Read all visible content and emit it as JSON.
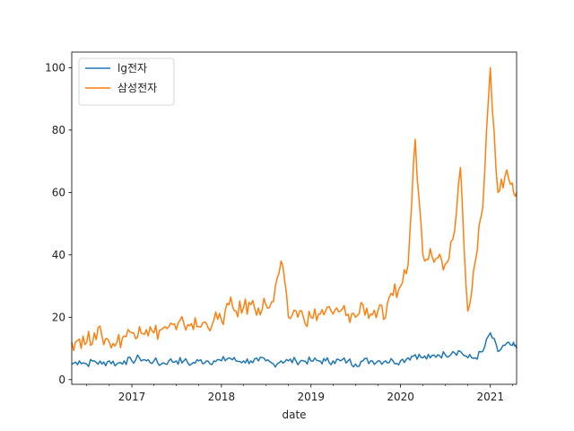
{
  "chart_data": {
    "type": "line",
    "title": "",
    "xlabel": "date",
    "ylabel": "",
    "ylim": [
      -1.5,
      105
    ],
    "xlim": [
      "2016-05-01",
      "2021-04-18"
    ],
    "grid": false,
    "legend": "top-left",
    "x_ticks": [
      "2017",
      "2018",
      "2019",
      "2020",
      "2021"
    ],
    "y_ticks": [
      "0",
      "20",
      "40",
      "60",
      "80",
      "100"
    ],
    "series": [
      {
        "name": "lg전자",
        "color": "#1f77b4",
        "points": [
          [
            "2016-05-01",
            5
          ],
          [
            "2016-06-01",
            6
          ],
          [
            "2016-07-01",
            5
          ],
          [
            "2016-08-01",
            6
          ],
          [
            "2016-09-01",
            5
          ],
          [
            "2016-10-01",
            6
          ],
          [
            "2016-11-01",
            5
          ],
          [
            "2016-12-01",
            6
          ],
          [
            "2017-01-01",
            6
          ],
          [
            "2017-02-01",
            7
          ],
          [
            "2017-03-01",
            6
          ],
          [
            "2017-04-01",
            6
          ],
          [
            "2017-05-01",
            5
          ],
          [
            "2017-06-01",
            6
          ],
          [
            "2017-07-01",
            6
          ],
          [
            "2017-08-01",
            6
          ],
          [
            "2017-09-01",
            5
          ],
          [
            "2017-10-01",
            6
          ],
          [
            "2017-11-01",
            6
          ],
          [
            "2017-12-01",
            6
          ],
          [
            "2018-01-01",
            6
          ],
          [
            "2018-02-01",
            7
          ],
          [
            "2018-03-01",
            6
          ],
          [
            "2018-04-01",
            6
          ],
          [
            "2018-05-01",
            6
          ],
          [
            "2018-06-01",
            6
          ],
          [
            "2018-07-01",
            6
          ],
          [
            "2018-08-01",
            5
          ],
          [
            "2018-09-01",
            6
          ],
          [
            "2018-10-01",
            6
          ],
          [
            "2018-11-01",
            6
          ],
          [
            "2018-12-01",
            6
          ],
          [
            "2019-01-01",
            6
          ],
          [
            "2019-02-01",
            6
          ],
          [
            "2019-03-01",
            6
          ],
          [
            "2019-04-01",
            6
          ],
          [
            "2019-05-01",
            6
          ],
          [
            "2019-06-01",
            6
          ],
          [
            "2019-07-01",
            5
          ],
          [
            "2019-08-01",
            6
          ],
          [
            "2019-09-01",
            6
          ],
          [
            "2019-10-01",
            6
          ],
          [
            "2019-11-01",
            6
          ],
          [
            "2019-12-01",
            6
          ],
          [
            "2020-01-01",
            6
          ],
          [
            "2020-02-01",
            7
          ],
          [
            "2020-03-01",
            8
          ],
          [
            "2020-04-01",
            7
          ],
          [
            "2020-05-01",
            7
          ],
          [
            "2020-06-01",
            8
          ],
          [
            "2020-07-01",
            8
          ],
          [
            "2020-08-01",
            9
          ],
          [
            "2020-09-01",
            9
          ],
          [
            "2020-10-01",
            7
          ],
          [
            "2020-11-01",
            7
          ],
          [
            "2020-12-01",
            9
          ],
          [
            "2021-01-01",
            15
          ],
          [
            "2021-02-01",
            9
          ],
          [
            "2021-03-01",
            11
          ],
          [
            "2021-04-01",
            11
          ],
          [
            "2021-04-18",
            10
          ]
        ]
      },
      {
        "name": "삼성전자",
        "color": "#ff7f0e",
        "points": [
          [
            "2016-05-01",
            12
          ],
          [
            "2016-06-01",
            13
          ],
          [
            "2016-07-01",
            12
          ],
          [
            "2016-08-01",
            15
          ],
          [
            "2016-09-01",
            14
          ],
          [
            "2016-10-01",
            12
          ],
          [
            "2016-11-01",
            12
          ],
          [
            "2016-12-01",
            14
          ],
          [
            "2017-01-01",
            15
          ],
          [
            "2017-02-01",
            17
          ],
          [
            "2017-03-01",
            16
          ],
          [
            "2017-04-01",
            15
          ],
          [
            "2017-05-01",
            16
          ],
          [
            "2017-06-01",
            17
          ],
          [
            "2017-07-01",
            16
          ],
          [
            "2017-08-01",
            18
          ],
          [
            "2017-09-01",
            18
          ],
          [
            "2017-10-01",
            17
          ],
          [
            "2017-11-01",
            18
          ],
          [
            "2017-12-01",
            19
          ],
          [
            "2018-01-01",
            19
          ],
          [
            "2018-02-01",
            24
          ],
          [
            "2018-03-01",
            22
          ],
          [
            "2018-04-01",
            23
          ],
          [
            "2018-05-01",
            24
          ],
          [
            "2018-06-01",
            23
          ],
          [
            "2018-07-01",
            24
          ],
          [
            "2018-08-01",
            25
          ],
          [
            "2018-09-01",
            38
          ],
          [
            "2018-10-01",
            20
          ],
          [
            "2018-11-01",
            22
          ],
          [
            "2018-12-01",
            20
          ],
          [
            "2019-01-01",
            20
          ],
          [
            "2019-02-01",
            21
          ],
          [
            "2019-03-01",
            22
          ],
          [
            "2019-04-01",
            21
          ],
          [
            "2019-05-01",
            22
          ],
          [
            "2019-06-01",
            21
          ],
          [
            "2019-07-01",
            20
          ],
          [
            "2019-08-01",
            24
          ],
          [
            "2019-09-01",
            21
          ],
          [
            "2019-10-01",
            22
          ],
          [
            "2019-11-01",
            20
          ],
          [
            "2019-12-01",
            27
          ],
          [
            "2020-01-01",
            30
          ],
          [
            "2020-02-01",
            37
          ],
          [
            "2020-03-01",
            77
          ],
          [
            "2020-04-01",
            40
          ],
          [
            "2020-05-01",
            42
          ],
          [
            "2020-06-01",
            39
          ],
          [
            "2020-07-01",
            37
          ],
          [
            "2020-08-01",
            45
          ],
          [
            "2020-09-01",
            68
          ],
          [
            "2020-10-01",
            22
          ],
          [
            "2020-11-01",
            38
          ],
          [
            "2020-12-01",
            55
          ],
          [
            "2021-01-01",
            100
          ],
          [
            "2021-02-01",
            60
          ],
          [
            "2021-03-01",
            65
          ],
          [
            "2021-04-01",
            63
          ],
          [
            "2021-04-18",
            60
          ]
        ]
      }
    ]
  }
}
